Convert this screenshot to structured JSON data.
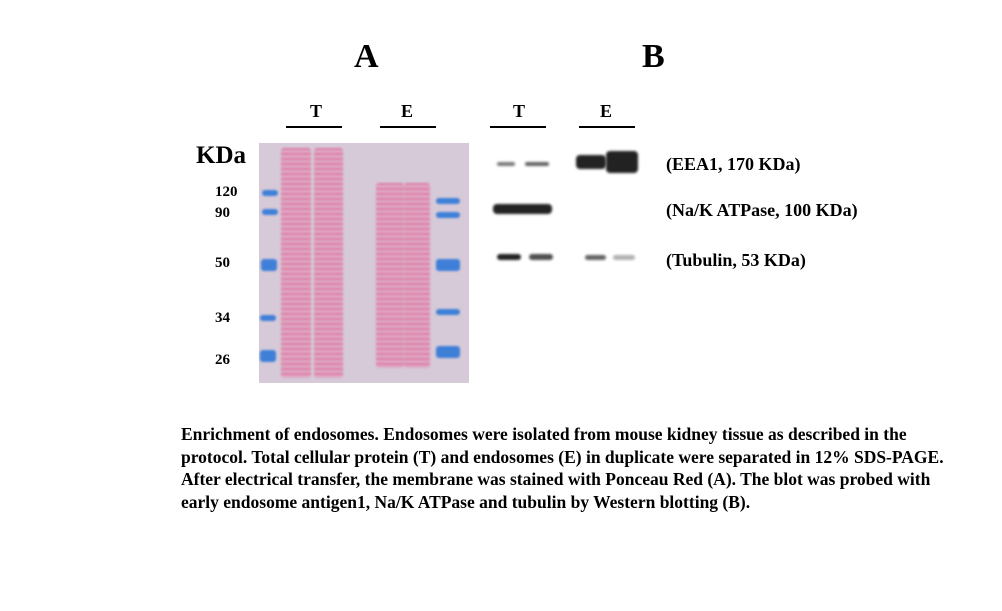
{
  "panels": {
    "a": "A",
    "b": "B"
  },
  "lanes": {
    "a_total": "T",
    "a_endo": "E",
    "b_total": "T",
    "b_endo": "E"
  },
  "mw": {
    "unit": "KDa",
    "markers": [
      "120",
      "90",
      "50",
      "34",
      "26"
    ]
  },
  "antibodies": [
    "(EEA1, 170 KDa)",
    "(Na/K ATPase, 100 KDa)",
    "(Tubulin, 53 KDa)"
  ],
  "colors": {
    "ponceau": "#e8508a",
    "ladder": "#3f7fd8",
    "membrane": "#d6cad8"
  },
  "caption": "Enrichment of endosomes.  Endosomes were isolated from mouse kidney tissue as described in the protocol.  Total cellular protein (T) and endosomes (E) in duplicate were separated in 12% SDS-PAGE.  After electrical transfer, the membrane was stained with Ponceau Red (A).  The blot was probed with early endosome antigen1, Na/K ATPase and tubulin by Western blotting (B)."
}
